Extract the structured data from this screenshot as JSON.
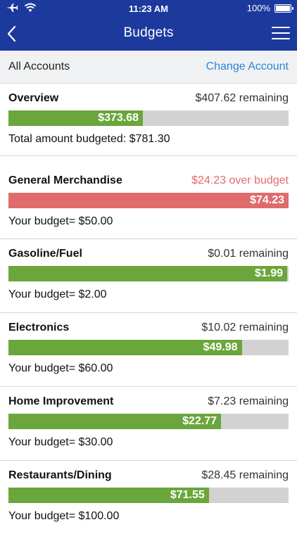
{
  "status_bar": {
    "time": "11:23 AM",
    "battery": "100%"
  },
  "nav": {
    "title": "Budgets"
  },
  "account": {
    "label": "All Accounts",
    "change_label": "Change Account"
  },
  "overview": {
    "name": "Overview",
    "status": "$407.62 remaining",
    "spent": "$373.68",
    "fill_fraction": 0.48,
    "summary": "Total amount budgeted: $781.30"
  },
  "categories": [
    {
      "name": "General Merchandise",
      "status": "$24.23 over budget",
      "over": true,
      "spent": "$74.23",
      "fill_fraction": 1.0,
      "budget": "Your budget= $50.00"
    },
    {
      "name": "Gasoline/Fuel",
      "status": "$0.01 remaining",
      "over": false,
      "spent": "$1.99",
      "fill_fraction": 0.995,
      "budget": "Your budget= $2.00"
    },
    {
      "name": "Electronics",
      "status": "$10.02 remaining",
      "over": false,
      "spent": "$49.98",
      "fill_fraction": 0.833,
      "budget": "Your budget= $60.00"
    },
    {
      "name": "Home Improvement",
      "status": "$7.23 remaining",
      "over": false,
      "spent": "$22.77",
      "fill_fraction": 0.759,
      "budget": "Your budget= $30.00"
    },
    {
      "name": "Restaurants/Dining",
      "status": "$28.45 remaining",
      "over": false,
      "spent": "$71.55",
      "fill_fraction": 0.7155,
      "budget": "Your budget= $100.00"
    }
  ],
  "colors": {
    "nav_bg": "#1c3a9e",
    "bar_green": "#6aa63b",
    "bar_red": "#e06b6b",
    "bar_bg": "#d2d2d2",
    "link": "#2a86d8"
  },
  "icons": {
    "airplane": "airplane-icon",
    "wifi": "wifi-icon",
    "battery": "battery-icon",
    "back": "chevron-left-icon",
    "menu": "hamburger-menu-icon"
  }
}
